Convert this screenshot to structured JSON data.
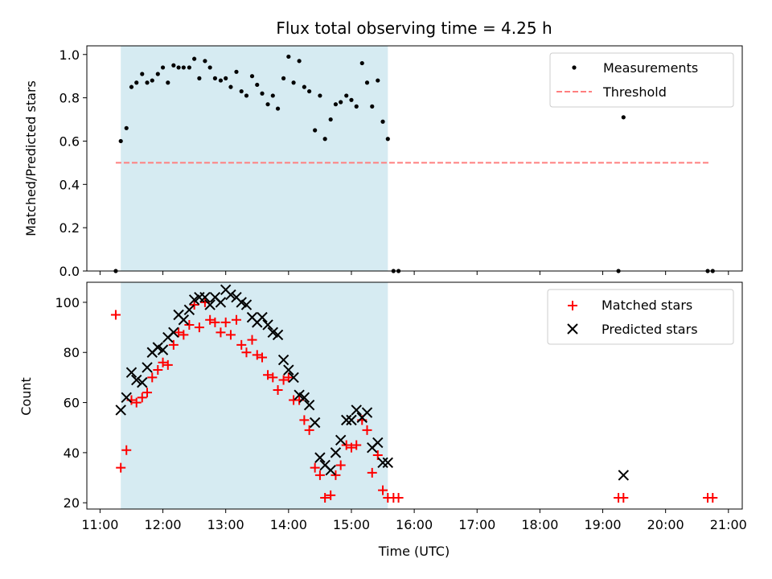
{
  "chart_data": [
    {
      "type": "scatter",
      "title": "Flux total observing time = 4.25 h",
      "xlabel": "",
      "ylabel": "Matched/Predicted stars",
      "ylim": [
        0,
        1.04
      ],
      "xlim": [
        10.79,
        21.22
      ],
      "x_unit": "hours UTC",
      "yticks": [
        0.0,
        0.2,
        0.4,
        0.6,
        0.8,
        1.0
      ],
      "ytick_labels": [
        "0.0",
        "0.2",
        "0.4",
        "0.6",
        "0.8",
        "1.0"
      ],
      "shaded_interval": [
        11.33,
        15.58
      ],
      "legend_position": "top-right",
      "series": [
        {
          "name": "Measurements",
          "marker": "dot",
          "color": "#000000",
          "points": [
            [
              11.25,
              0.0
            ],
            [
              11.33,
              0.6
            ],
            [
              11.42,
              0.66
            ],
            [
              11.5,
              0.85
            ],
            [
              11.58,
              0.87
            ],
            [
              11.67,
              0.91
            ],
            [
              11.75,
              0.87
            ],
            [
              11.83,
              0.88
            ],
            [
              11.92,
              0.91
            ],
            [
              12.0,
              0.94
            ],
            [
              12.08,
              0.87
            ],
            [
              12.17,
              0.95
            ],
            [
              12.25,
              0.94
            ],
            [
              12.33,
              0.94
            ],
            [
              12.42,
              0.94
            ],
            [
              12.5,
              0.98
            ],
            [
              12.58,
              0.89
            ],
            [
              12.67,
              0.97
            ],
            [
              12.75,
              0.94
            ],
            [
              12.83,
              0.89
            ],
            [
              12.92,
              0.88
            ],
            [
              13.0,
              0.89
            ],
            [
              13.08,
              0.85
            ],
            [
              13.17,
              0.92
            ],
            [
              13.25,
              0.83
            ],
            [
              13.33,
              0.81
            ],
            [
              13.42,
              0.9
            ],
            [
              13.5,
              0.86
            ],
            [
              13.58,
              0.82
            ],
            [
              13.67,
              0.77
            ],
            [
              13.75,
              0.81
            ],
            [
              13.83,
              0.75
            ],
            [
              13.92,
              0.89
            ],
            [
              14.0,
              0.99
            ],
            [
              14.08,
              0.87
            ],
            [
              14.17,
              0.97
            ],
            [
              14.25,
              0.85
            ],
            [
              14.33,
              0.83
            ],
            [
              14.42,
              0.65
            ],
            [
              14.5,
              0.81
            ],
            [
              14.58,
              0.61
            ],
            [
              14.67,
              0.7
            ],
            [
              14.75,
              0.77
            ],
            [
              14.83,
              0.78
            ],
            [
              14.92,
              0.81
            ],
            [
              15.0,
              0.79
            ],
            [
              15.08,
              0.76
            ],
            [
              15.17,
              0.96
            ],
            [
              15.25,
              0.87
            ],
            [
              15.33,
              0.76
            ],
            [
              15.42,
              0.88
            ],
            [
              15.5,
              0.69
            ],
            [
              15.58,
              0.61
            ],
            [
              15.67,
              0.0
            ],
            [
              15.75,
              0.0
            ],
            [
              19.25,
              0.0
            ],
            [
              19.33,
              0.71
            ],
            [
              20.67,
              0.0
            ],
            [
              20.75,
              0.0
            ]
          ]
        },
        {
          "name": "Threshold",
          "marker": "dashed-line",
          "color": "#ff7f7f",
          "x": [
            11.25,
            20.72
          ],
          "y": [
            0.5,
            0.5
          ]
        }
      ]
    },
    {
      "type": "scatter",
      "title": "",
      "xlabel": "Time (UTC)",
      "ylabel": "Count",
      "ylim": [
        17.5,
        108
      ],
      "xlim": [
        10.79,
        21.22
      ],
      "yticks": [
        20,
        40,
        60,
        80,
        100
      ],
      "ytick_labels": [
        "20",
        "40",
        "60",
        "80",
        "100"
      ],
      "xticks": [
        11,
        12,
        13,
        14,
        15,
        16,
        17,
        18,
        19,
        20,
        21
      ],
      "xtick_labels": [
        "11:00",
        "12:00",
        "13:00",
        "14:00",
        "15:00",
        "16:00",
        "17:00",
        "18:00",
        "19:00",
        "20:00",
        "21:00"
      ],
      "shaded_interval": [
        11.33,
        15.58
      ],
      "legend_position": "top-right",
      "series": [
        {
          "name": "Matched stars",
          "marker": "plus",
          "color": "#ff0000",
          "points": [
            [
              11.25,
              95
            ],
            [
              11.33,
              34
            ],
            [
              11.42,
              41
            ],
            [
              11.5,
              61
            ],
            [
              11.58,
              60
            ],
            [
              11.67,
              62
            ],
            [
              11.75,
              64
            ],
            [
              11.83,
              70
            ],
            [
              11.92,
              73
            ],
            [
              12.0,
              76
            ],
            [
              12.08,
              75
            ],
            [
              12.17,
              83
            ],
            [
              12.25,
              88
            ],
            [
              12.33,
              87
            ],
            [
              12.42,
              91
            ],
            [
              12.5,
              99
            ],
            [
              12.58,
              90
            ],
            [
              12.67,
              100
            ],
            [
              12.75,
              93
            ],
            [
              12.83,
              92
            ],
            [
              12.92,
              88
            ],
            [
              13.0,
              92
            ],
            [
              13.08,
              87
            ],
            [
              13.17,
              93
            ],
            [
              13.25,
              83
            ],
            [
              13.33,
              80
            ],
            [
              13.42,
              85
            ],
            [
              13.5,
              79
            ],
            [
              13.58,
              78
            ],
            [
              13.67,
              71
            ],
            [
              13.75,
              70
            ],
            [
              13.83,
              65
            ],
            [
              13.92,
              69
            ],
            [
              14.0,
              70
            ],
            [
              14.08,
              61
            ],
            [
              14.17,
              61
            ],
            [
              14.25,
              53
            ],
            [
              14.33,
              49
            ],
            [
              14.42,
              34
            ],
            [
              14.5,
              31
            ],
            [
              14.58,
              22
            ],
            [
              14.67,
              23
            ],
            [
              14.75,
              31
            ],
            [
              14.83,
              35
            ],
            [
              14.92,
              43
            ],
            [
              15.0,
              42
            ],
            [
              15.08,
              43
            ],
            [
              15.17,
              53
            ],
            [
              15.25,
              49
            ],
            [
              15.33,
              32
            ],
            [
              15.42,
              39
            ],
            [
              15.5,
              25
            ],
            [
              15.58,
              22
            ],
            [
              15.67,
              22
            ],
            [
              15.75,
              22
            ],
            [
              19.25,
              22
            ],
            [
              19.33,
              22
            ],
            [
              20.67,
              22
            ],
            [
              20.75,
              22
            ]
          ]
        },
        {
          "name": "Predicted stars",
          "marker": "x",
          "color": "#000000",
          "points": [
            [
              11.33,
              57
            ],
            [
              11.42,
              62
            ],
            [
              11.5,
              72
            ],
            [
              11.58,
              69
            ],
            [
              11.67,
              68
            ],
            [
              11.75,
              74
            ],
            [
              11.83,
              80
            ],
            [
              11.92,
              82
            ],
            [
              12.0,
              81
            ],
            [
              12.08,
              86
            ],
            [
              12.17,
              88
            ],
            [
              12.25,
              95
            ],
            [
              12.33,
              93
            ],
            [
              12.42,
              97
            ],
            [
              12.5,
              101
            ],
            [
              12.58,
              102
            ],
            [
              12.67,
              102
            ],
            [
              12.75,
              99
            ],
            [
              12.83,
              102
            ],
            [
              12.92,
              100
            ],
            [
              13.0,
              105
            ],
            [
              13.08,
              103
            ],
            [
              13.17,
              102
            ],
            [
              13.25,
              100
            ],
            [
              13.33,
              99
            ],
            [
              13.42,
              94
            ],
            [
              13.5,
              92
            ],
            [
              13.58,
              94
            ],
            [
              13.67,
              91
            ],
            [
              13.75,
              88
            ],
            [
              13.83,
              87
            ],
            [
              13.92,
              77
            ],
            [
              14.0,
              73
            ],
            [
              14.08,
              70
            ],
            [
              14.17,
              63
            ],
            [
              14.25,
              62
            ],
            [
              14.33,
              59
            ],
            [
              14.42,
              52
            ],
            [
              14.5,
              38
            ],
            [
              14.58,
              35
            ],
            [
              14.67,
              33
            ],
            [
              14.75,
              40
            ],
            [
              14.83,
              45
            ],
            [
              14.92,
              53
            ],
            [
              15.0,
              53
            ],
            [
              15.08,
              57
            ],
            [
              15.17,
              54
            ],
            [
              15.25,
              56
            ],
            [
              15.33,
              42
            ],
            [
              15.42,
              44
            ],
            [
              15.5,
              36
            ],
            [
              15.58,
              36
            ],
            [
              19.33,
              31
            ]
          ]
        }
      ]
    }
  ]
}
